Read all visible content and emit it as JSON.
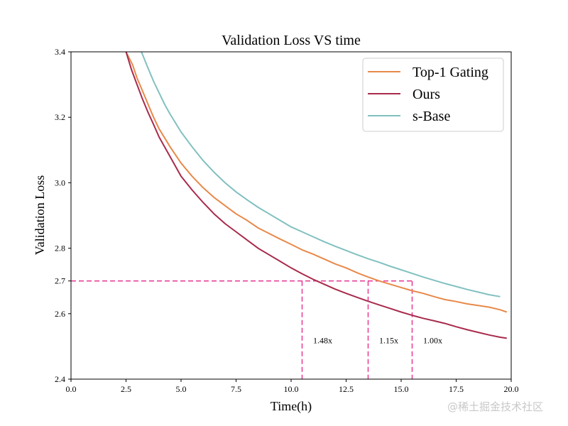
{
  "chart_data": {
    "type": "line",
    "title": "Validation Loss VS time",
    "xlabel": "Time(h)",
    "ylabel": "Validation Loss",
    "xlim": [
      0.0,
      20.0
    ],
    "ylim": [
      2.4,
      3.4
    ],
    "xticks": [
      "0.0",
      "2.5",
      "5.0",
      "7.5",
      "10.0",
      "12.5",
      "15.0",
      "17.5",
      "20.0"
    ],
    "xtick_values": [
      0,
      2.5,
      5,
      7.5,
      10,
      12.5,
      15,
      17.5,
      20
    ],
    "yticks": [
      "2.4",
      "2.6",
      "2.7",
      "2.8",
      "3.0",
      "3.2",
      "3.4"
    ],
    "ytick_values": [
      2.4,
      2.6,
      2.7,
      2.8,
      3.0,
      3.2,
      3.4
    ],
    "grid": false,
    "legend_position": "top-right",
    "series": [
      {
        "name": "Top-1 Gating",
        "color": "#e8894a",
        "x": [
          2.5,
          2.8,
          3.0,
          3.25,
          3.5,
          3.75,
          4.0,
          4.5,
          5.0,
          5.5,
          6.0,
          6.5,
          7.0,
          7.5,
          8.0,
          8.5,
          9.0,
          9.5,
          10.0,
          10.5,
          11.0,
          11.5,
          12.0,
          12.5,
          13.0,
          13.5,
          14.0,
          14.5,
          15.0,
          15.5,
          16.0,
          16.5,
          17.0,
          17.5,
          18.0,
          18.5,
          19.0,
          19.5,
          19.8
        ],
        "y": [
          3.4,
          3.36,
          3.32,
          3.28,
          3.24,
          3.2,
          3.165,
          3.11,
          3.06,
          3.02,
          2.985,
          2.955,
          2.93,
          2.905,
          2.885,
          2.862,
          2.845,
          2.828,
          2.812,
          2.795,
          2.782,
          2.767,
          2.752,
          2.74,
          2.725,
          2.712,
          2.7,
          2.69,
          2.68,
          2.67,
          2.662,
          2.652,
          2.643,
          2.637,
          2.63,
          2.625,
          2.62,
          2.612,
          2.605
        ]
      },
      {
        "name": "Ours",
        "color": "#a82b4c",
        "x": [
          2.5,
          2.75,
          3.0,
          3.25,
          3.5,
          3.75,
          4.0,
          4.5,
          5.0,
          5.5,
          6.0,
          6.5,
          7.0,
          7.5,
          8.0,
          8.5,
          9.0,
          9.5,
          10.0,
          10.5,
          11.0,
          11.5,
          12.0,
          12.5,
          13.0,
          13.5,
          14.0,
          14.5,
          15.0,
          15.5,
          16.0,
          16.5,
          17.0,
          17.5,
          18.0,
          18.5,
          19.0,
          19.5,
          19.8
        ],
        "y": [
          3.4,
          3.345,
          3.3,
          3.255,
          3.215,
          3.178,
          3.14,
          3.08,
          3.02,
          2.978,
          2.94,
          2.905,
          2.875,
          2.85,
          2.825,
          2.8,
          2.78,
          2.76,
          2.74,
          2.722,
          2.705,
          2.69,
          2.675,
          2.662,
          2.65,
          2.638,
          2.627,
          2.616,
          2.605,
          2.595,
          2.586,
          2.578,
          2.57,
          2.56,
          2.551,
          2.543,
          2.535,
          2.528,
          2.525
        ]
      },
      {
        "name": "s-Base",
        "color": "#82c0c0",
        "x": [
          3.2,
          3.5,
          3.75,
          4.0,
          4.25,
          4.5,
          5.0,
          5.5,
          6.0,
          6.5,
          7.0,
          7.5,
          8.0,
          8.5,
          9.0,
          9.5,
          10.0,
          10.5,
          11.0,
          11.5,
          12.0,
          12.5,
          13.0,
          13.5,
          14.0,
          14.5,
          15.0,
          15.5,
          16.0,
          16.5,
          17.0,
          17.5,
          18.0,
          18.5,
          19.0,
          19.5
        ],
        "y": [
          3.4,
          3.35,
          3.31,
          3.275,
          3.24,
          3.21,
          3.155,
          3.11,
          3.068,
          3.032,
          3.0,
          2.972,
          2.948,
          2.925,
          2.905,
          2.885,
          2.865,
          2.85,
          2.835,
          2.82,
          2.806,
          2.793,
          2.78,
          2.768,
          2.757,
          2.745,
          2.734,
          2.723,
          2.712,
          2.702,
          2.692,
          2.683,
          2.674,
          2.666,
          2.658,
          2.652
        ]
      }
    ],
    "reference_lines": {
      "horizontal_y": 2.7,
      "horizontal_x_end": 15.5,
      "vertical_x": [
        10.5,
        13.5,
        15.5
      ],
      "color": "#e8409a"
    },
    "annotations": [
      {
        "text": "1.48x",
        "x": 11.0,
        "y": 2.51
      },
      {
        "text": "1.15x",
        "x": 14.0,
        "y": 2.51
      },
      {
        "text": "1.00x",
        "x": 16.0,
        "y": 2.51
      }
    ]
  },
  "watermark": "@稀土掘金技术社区"
}
